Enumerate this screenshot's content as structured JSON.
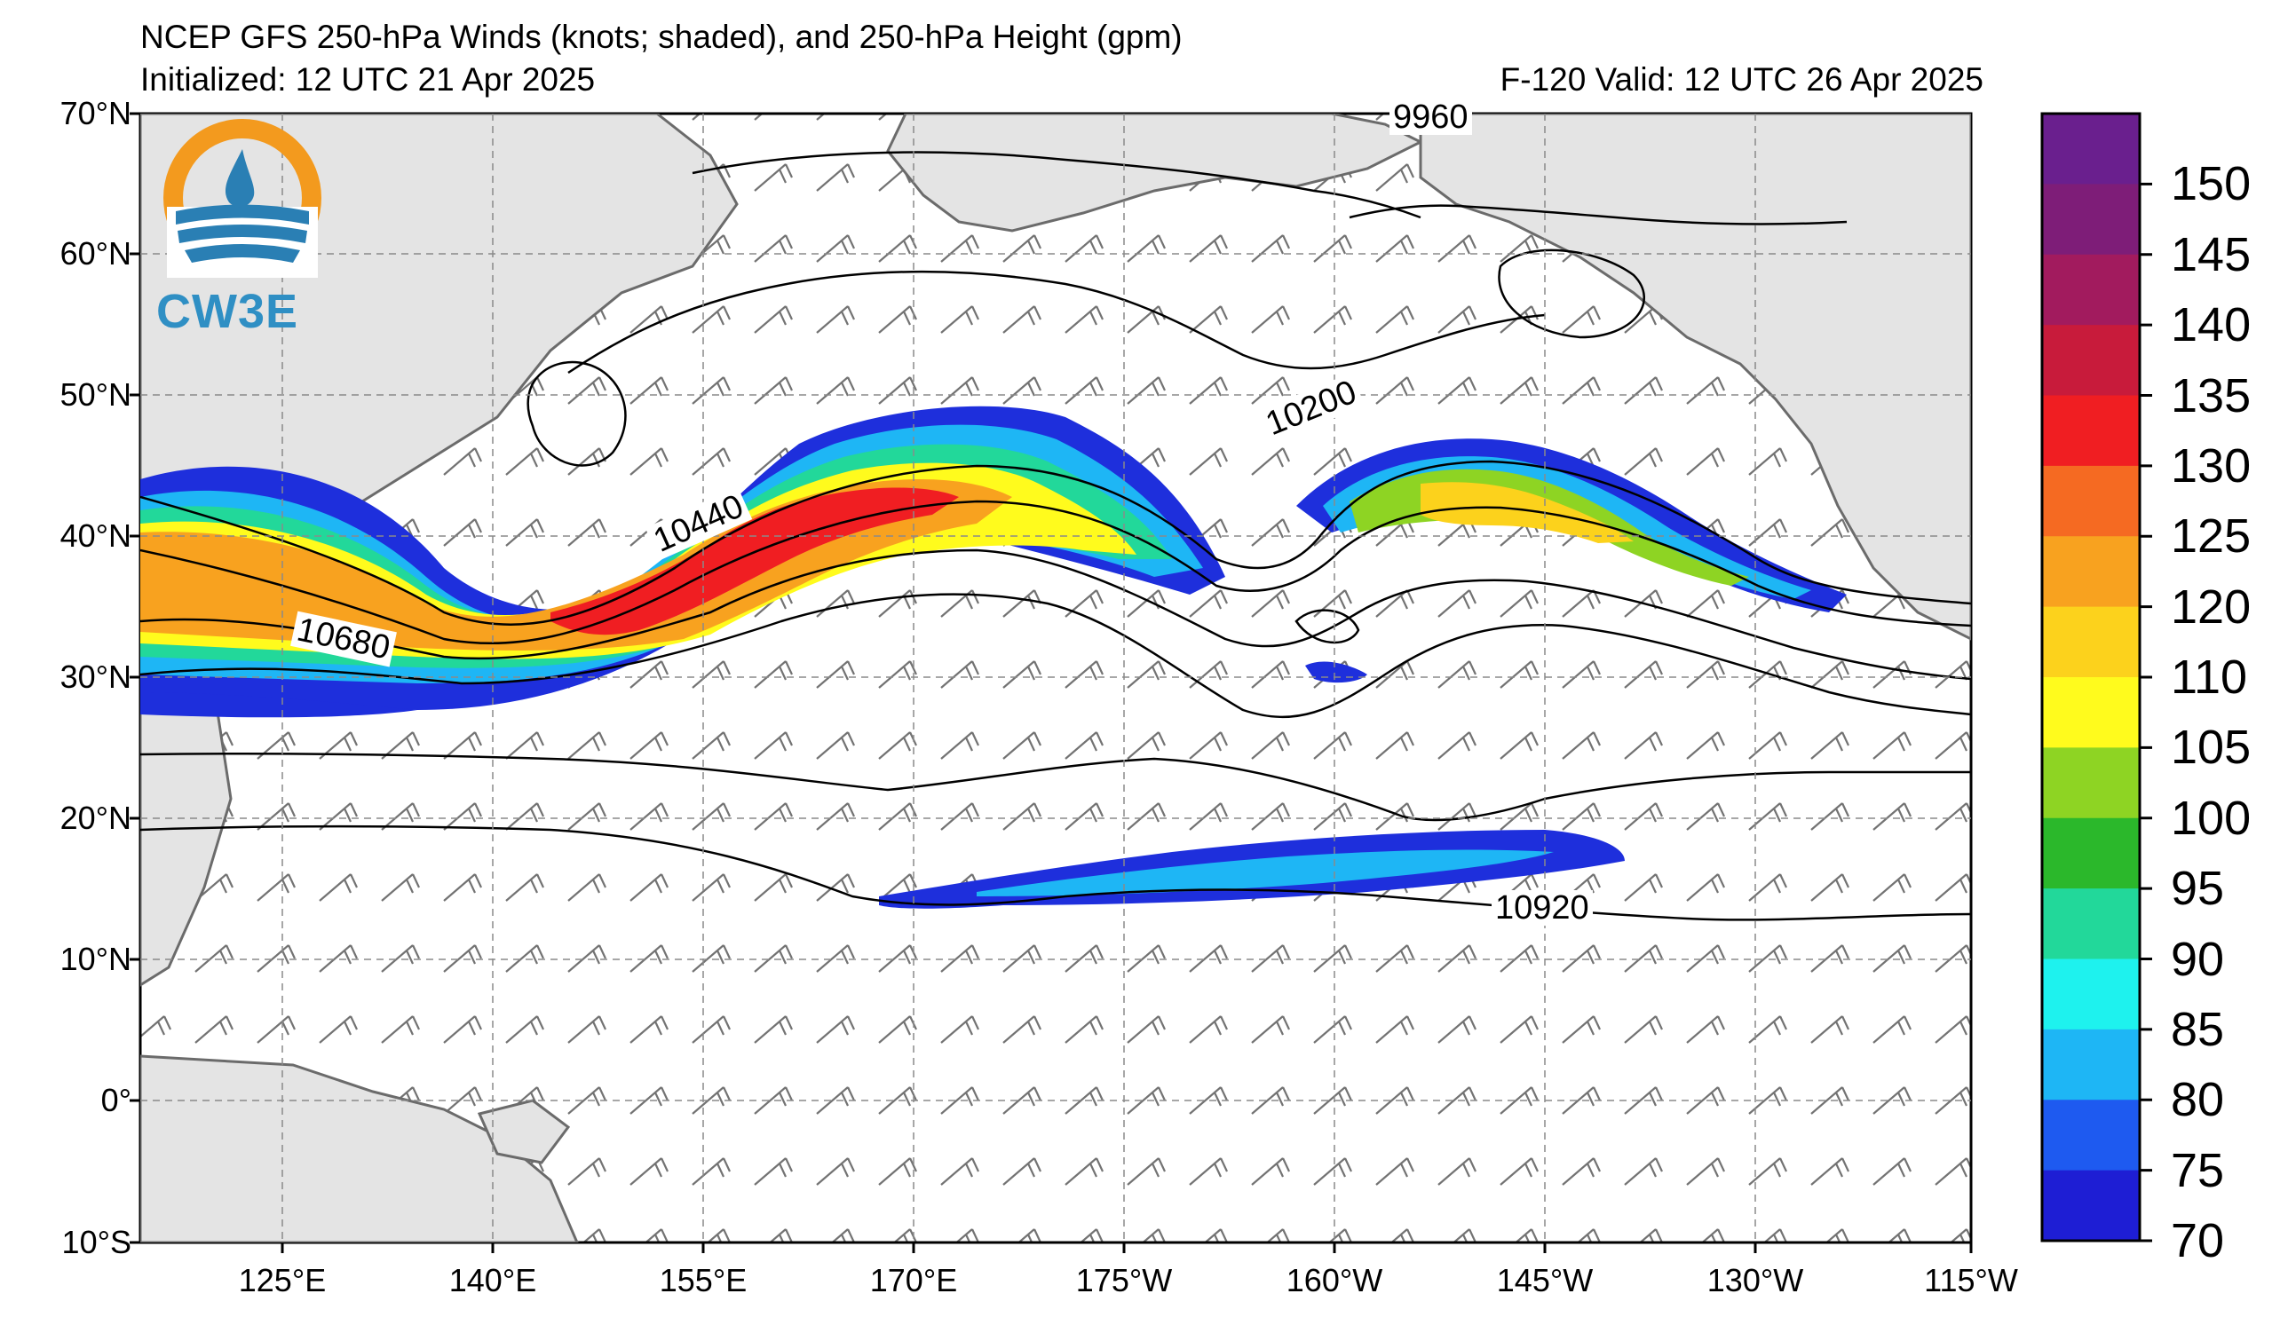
{
  "header": {
    "title": "NCEP GFS 250-hPa Winds (knots; shaded), and 250-hPa Height (gpm)",
    "initialized": "Initialized: 12 UTC 21 Apr 2025",
    "valid": "F-120  Valid: 12 UTC 26 Apr 2025"
  },
  "logo": {
    "text": "CW3E",
    "accent": "#f39a1e",
    "water": "#2a7fb4"
  },
  "axes": {
    "lat_labels": [
      "70°N",
      "60°N",
      "50°N",
      "40°N",
      "30°N",
      "20°N",
      "10°N",
      "0°",
      "10°S"
    ],
    "lon_labels": [
      "125°E",
      "140°E",
      "155°E",
      "170°E",
      "175°W",
      "160°W",
      "145°W",
      "130°W",
      "115°W"
    ]
  },
  "colorbar": {
    "labels": [
      "150",
      "145",
      "140",
      "135",
      "130",
      "125",
      "120",
      "110",
      "105",
      "100",
      "95",
      "90",
      "85",
      "80",
      "75",
      "70"
    ],
    "colors": [
      "#6a1f8e",
      "#7e1d78",
      "#a21b5e",
      "#c81b3b",
      "#f01e22",
      "#f56a22",
      "#f8a21f",
      "#fcd21c",
      "#fffb1d",
      "#8ed423",
      "#2bb82b",
      "#22d89a",
      "#1ef2ee",
      "#1eb6f5",
      "#1e5af0",
      "#1e1ed4"
    ]
  },
  "contour_labels": [
    "9960",
    "10200",
    "10440",
    "10680",
    "10920"
  ]
}
